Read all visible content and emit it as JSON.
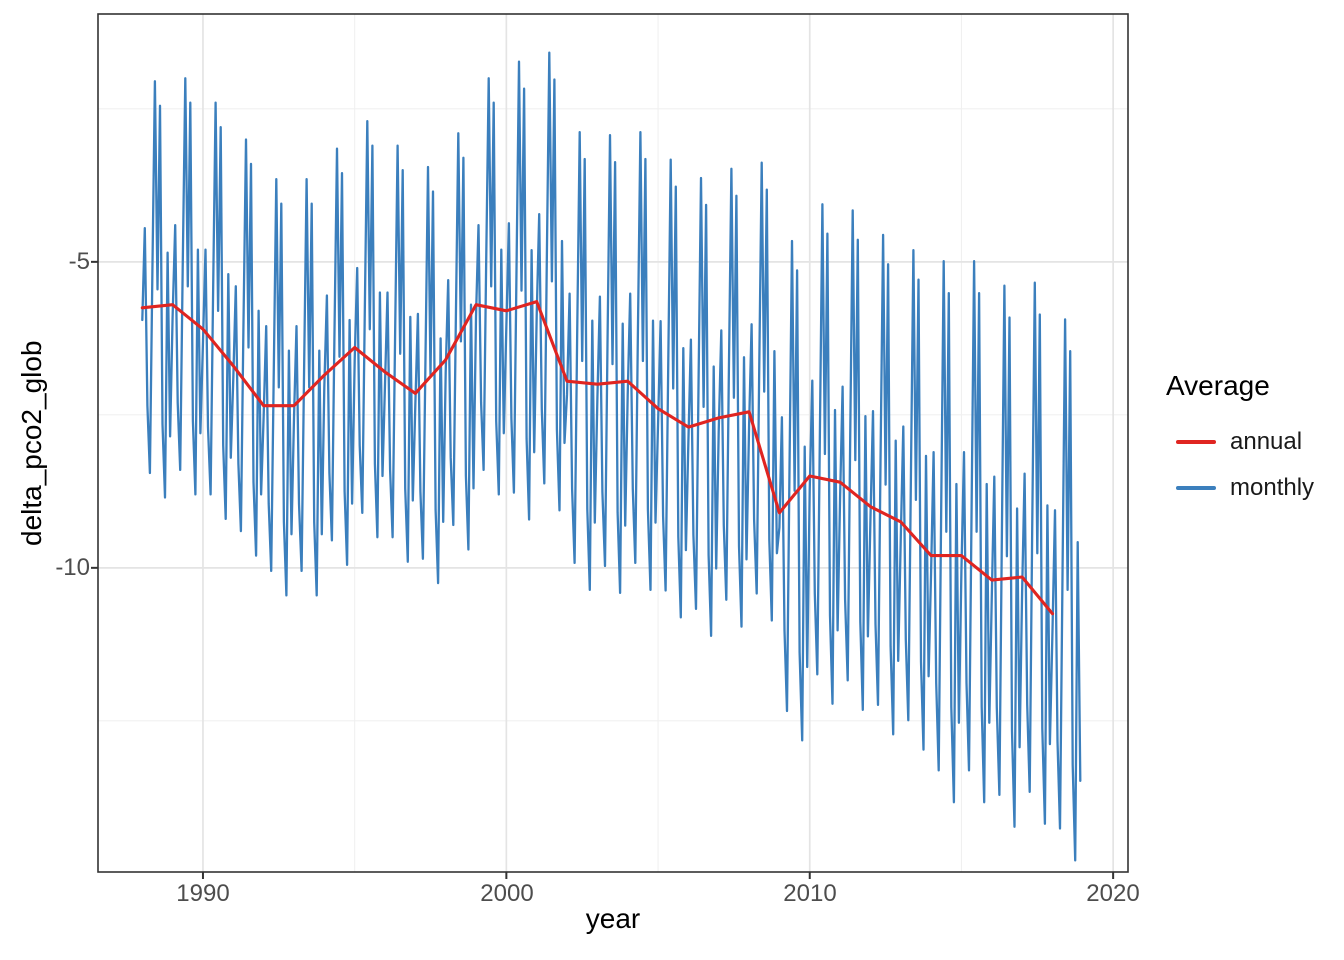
{
  "figure": {
    "background": "#ffffff",
    "panel_border_color": "#333333",
    "grid_major_color": "#e4e4e4",
    "grid_minor_color": "#f0f0f0",
    "tick_color": "#333333",
    "tick_label_color": "#4d4d4d"
  },
  "legend": {
    "title": "Average",
    "entries": [
      {
        "label": "annual",
        "color": "#e02521"
      },
      {
        "label": "monthly",
        "color": "#3b7fbd"
      }
    ]
  },
  "chart_data": {
    "type": "line",
    "title": "",
    "xlabel": "year",
    "ylabel": "delta_pco2_glob",
    "x_domain": [
      1986.54,
      2020.49
    ],
    "y_domain": [
      -14.97,
      -0.95
    ],
    "x_ticks": {
      "values": [
        1990,
        2000,
        2010,
        2020
      ],
      "labels": [
        "1990",
        "2000",
        "2010",
        "2020"
      ]
    },
    "x_minor_ticks": [
      1995,
      2005,
      2015
    ],
    "y_ticks": {
      "values": [
        -5,
        -10
      ],
      "labels": [
        "-5",
        "-10"
      ]
    },
    "y_minor_ticks": [
      -2.5,
      -7.5,
      -12.5
    ],
    "grid": true,
    "legend_position": "right",
    "series": [
      {
        "name": "annual",
        "color": "#e02521",
        "width": 3.1,
        "x": [
          1988,
          1989,
          1990,
          1991,
          1992,
          1993,
          1994,
          1995,
          1996,
          1997,
          1998,
          1999,
          2000,
          2001,
          2002,
          2003,
          2004,
          2005,
          2006,
          2007,
          2008,
          2009,
          2010,
          2011,
          2012,
          2013,
          2014,
          2015,
          2016,
          2017,
          2018
        ],
        "values": [
          -5.75,
          -5.7,
          -6.1,
          -6.7,
          -7.35,
          -7.35,
          -6.85,
          -6.4,
          -6.8,
          -7.15,
          -6.6,
          -5.7,
          -5.8,
          -5.65,
          -6.95,
          -7.0,
          -6.95,
          -7.4,
          -7.7,
          -7.55,
          -7.45,
          -9.1,
          -8.5,
          -8.6,
          -9.0,
          -9.25,
          -9.8,
          -9.8,
          -10.2,
          -10.15,
          -10.75
        ]
      },
      {
        "name": "monthly",
        "color": "#3b7fbd",
        "width": 2.3,
        "start_year": 1988,
        "values_by_year": [
          [
            -5.95,
            -4.45,
            -7.35,
            -8.45,
            -5.15,
            -2.05,
            -5.45,
            -2.45,
            -7.65,
            -8.85,
            -4.85,
            -7.85
          ],
          [
            -5.9,
            -4.4,
            -7.3,
            -8.4,
            -5.1,
            -2.0,
            -5.4,
            -2.4,
            -7.6,
            -8.8,
            -4.8,
            -7.8
          ],
          [
            -6.3,
            -4.8,
            -7.7,
            -8.8,
            -5.5,
            -2.4,
            -5.8,
            -2.8,
            -8.0,
            -9.2,
            -5.2,
            -8.2
          ],
          [
            -6.9,
            -5.4,
            -8.3,
            -9.4,
            -6.1,
            -3.0,
            -6.4,
            -3.4,
            -8.6,
            -9.8,
            -5.8,
            -8.8
          ],
          [
            -7.55,
            -6.05,
            -8.95,
            -10.05,
            -6.75,
            -3.65,
            -7.05,
            -4.05,
            -9.25,
            -10.45,
            -6.45,
            -9.45
          ],
          [
            -7.55,
            -6.05,
            -8.95,
            -10.05,
            -6.75,
            -3.65,
            -7.05,
            -4.05,
            -9.25,
            -10.45,
            -6.45,
            -9.45
          ],
          [
            -7.05,
            -5.55,
            -8.45,
            -9.55,
            -6.25,
            -3.15,
            -6.55,
            -3.55,
            -8.75,
            -9.95,
            -5.95,
            -8.95
          ],
          [
            -6.6,
            -5.1,
            -8.0,
            -9.1,
            -5.8,
            -2.7,
            -6.1,
            -3.1,
            -8.3,
            -9.5,
            -5.5,
            -8.5
          ],
          [
            -7.0,
            -5.5,
            -8.4,
            -9.5,
            -6.2,
            -3.1,
            -6.5,
            -3.5,
            -8.7,
            -9.9,
            -5.9,
            -8.9
          ],
          [
            -7.35,
            -5.85,
            -8.75,
            -9.85,
            -6.55,
            -3.45,
            -6.85,
            -3.85,
            -9.05,
            -10.25,
            -6.25,
            -9.25
          ],
          [
            -6.8,
            -5.3,
            -8.2,
            -9.3,
            -6.0,
            -2.9,
            -6.3,
            -3.3,
            -8.5,
            -9.7,
            -5.7,
            -8.7
          ],
          [
            -5.9,
            -4.4,
            -7.3,
            -8.4,
            -5.1,
            -2.0,
            -5.4,
            -2.4,
            -7.6,
            -8.8,
            -4.8,
            -7.8
          ],
          [
            -6.02,
            -4.37,
            -7.56,
            -8.77,
            -5.14,
            -1.73,
            -5.47,
            -2.17,
            -7.89,
            -9.21,
            -4.81,
            -8.11
          ],
          [
            -5.87,
            -4.22,
            -7.41,
            -8.62,
            -4.99,
            -1.58,
            -5.32,
            -2.02,
            -7.74,
            -9.06,
            -4.66,
            -7.96
          ],
          [
            -7.17,
            -5.52,
            -8.71,
            -9.92,
            -6.29,
            -2.88,
            -6.62,
            -3.32,
            -9.04,
            -10.36,
            -5.96,
            -9.26
          ],
          [
            -7.22,
            -5.57,
            -8.76,
            -9.97,
            -6.34,
            -2.93,
            -6.67,
            -3.37,
            -9.09,
            -10.41,
            -6.01,
            -9.31
          ],
          [
            -7.17,
            -5.52,
            -8.71,
            -9.92,
            -6.29,
            -2.88,
            -6.62,
            -3.32,
            -9.04,
            -10.36,
            -5.96,
            -9.26
          ],
          [
            -7.62,
            -5.97,
            -9.16,
            -10.37,
            -6.74,
            -3.33,
            -7.07,
            -3.77,
            -9.49,
            -10.81,
            -6.41,
            -9.71
          ],
          [
            -7.92,
            -6.27,
            -9.46,
            -10.67,
            -7.04,
            -3.63,
            -7.37,
            -4.07,
            -9.79,
            -11.11,
            -6.71,
            -10.01
          ],
          [
            -7.77,
            -6.12,
            -9.31,
            -10.52,
            -6.89,
            -3.48,
            -7.22,
            -3.92,
            -9.64,
            -10.96,
            -6.56,
            -9.86
          ],
          [
            -7.67,
            -6.02,
            -9.21,
            -10.42,
            -6.79,
            -3.38,
            -7.12,
            -3.82,
            -9.54,
            -10.86,
            -6.46,
            -9.76
          ],
          [
            -9.34,
            -7.54,
            -11.02,
            -12.34,
            -8.38,
            -4.66,
            -8.74,
            -5.14,
            -11.38,
            -12.82,
            -8.02,
            -11.62
          ],
          [
            -8.74,
            -6.94,
            -10.42,
            -11.74,
            -7.78,
            -4.06,
            -8.14,
            -4.54,
            -10.78,
            -12.22,
            -7.42,
            -11.02
          ],
          [
            -8.84,
            -7.04,
            -10.52,
            -11.84,
            -7.88,
            -4.16,
            -8.24,
            -4.64,
            -10.88,
            -12.32,
            -7.52,
            -11.12
          ],
          [
            -9.24,
            -7.44,
            -10.92,
            -12.24,
            -8.28,
            -4.56,
            -8.64,
            -5.04,
            -11.28,
            -12.72,
            -7.92,
            -11.52
          ],
          [
            -9.49,
            -7.69,
            -11.17,
            -12.49,
            -8.53,
            -4.81,
            -8.89,
            -5.29,
            -11.53,
            -12.97,
            -8.17,
            -11.77
          ],
          [
            -10.06,
            -8.11,
            -11.88,
            -13.31,
            -9.02,
            -4.99,
            -9.41,
            -5.51,
            -12.27,
            -13.83,
            -8.63,
            -12.53
          ],
          [
            -10.06,
            -8.11,
            -11.88,
            -13.31,
            -9.02,
            -4.99,
            -9.41,
            -5.51,
            -12.27,
            -13.83,
            -8.63,
            -12.53
          ],
          [
            -10.46,
            -8.51,
            -12.28,
            -13.71,
            -9.42,
            -5.39,
            -9.81,
            -5.91,
            -12.67,
            -14.23,
            -9.03,
            -12.93
          ],
          [
            -10.41,
            -8.46,
            -12.23,
            -13.66,
            -9.37,
            -5.34,
            -9.76,
            -5.86,
            -12.62,
            -14.18,
            -8.98,
            -12.88
          ],
          [
            -11.01,
            -9.06,
            -12.83,
            -14.26,
            -9.97,
            -5.94,
            -10.36,
            -6.46,
            -13.22,
            -14.78,
            -9.58,
            -13.48
          ]
        ]
      }
    ]
  }
}
